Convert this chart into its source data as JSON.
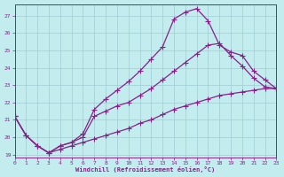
{
  "xlabel": "Windchill (Refroidissement éolien,°C)",
  "bg_color": "#c2ecee",
  "grid_color": "#a0ccd4",
  "line_color": "#882288",
  "xlim": [
    0,
    23
  ],
  "ylim": [
    18.85,
    27.65
  ],
  "yticks": [
    19,
    20,
    21,
    22,
    23,
    24,
    25,
    26,
    27
  ],
  "xticks": [
    0,
    1,
    2,
    3,
    4,
    5,
    6,
    7,
    8,
    9,
    10,
    11,
    12,
    13,
    14,
    15,
    16,
    17,
    18,
    19,
    20,
    21,
    22,
    23
  ],
  "line1_x": [
    0,
    1,
    2,
    3,
    4,
    5,
    6,
    7,
    8,
    9,
    10,
    11,
    12,
    13,
    14,
    15,
    16,
    17,
    18,
    19,
    20,
    21,
    22,
    23
  ],
  "line1_y": [
    21.2,
    20.1,
    19.5,
    19.1,
    19.5,
    19.7,
    20.2,
    21.6,
    22.2,
    22.7,
    23.2,
    23.8,
    24.5,
    25.2,
    26.8,
    27.2,
    27.4,
    26.7,
    25.3,
    24.9,
    24.7,
    23.8,
    23.3,
    22.8
  ],
  "line2_x": [
    0,
    1,
    2,
    3,
    4,
    5,
    6,
    7,
    8,
    9,
    10,
    11,
    12,
    13,
    14,
    15,
    16,
    17,
    18,
    19,
    20,
    21,
    22,
    23
  ],
  "line2_y": [
    21.2,
    20.1,
    19.5,
    19.1,
    19.5,
    19.7,
    20.0,
    21.2,
    21.5,
    21.8,
    22.0,
    22.4,
    22.8,
    23.3,
    23.8,
    24.3,
    24.8,
    25.3,
    25.4,
    24.7,
    24.1,
    23.4,
    22.9,
    22.8
  ],
  "line3_x": [
    0,
    1,
    2,
    3,
    4,
    5,
    6,
    7,
    8,
    9,
    10,
    11,
    12,
    13,
    14,
    15,
    16,
    17,
    18,
    19,
    20,
    21,
    22,
    23
  ],
  "line3_y": [
    21.2,
    20.1,
    19.5,
    19.1,
    19.3,
    19.5,
    19.7,
    19.9,
    20.1,
    20.3,
    20.5,
    20.8,
    21.0,
    21.3,
    21.6,
    21.8,
    22.0,
    22.2,
    22.4,
    22.5,
    22.6,
    22.7,
    22.8,
    22.8
  ]
}
